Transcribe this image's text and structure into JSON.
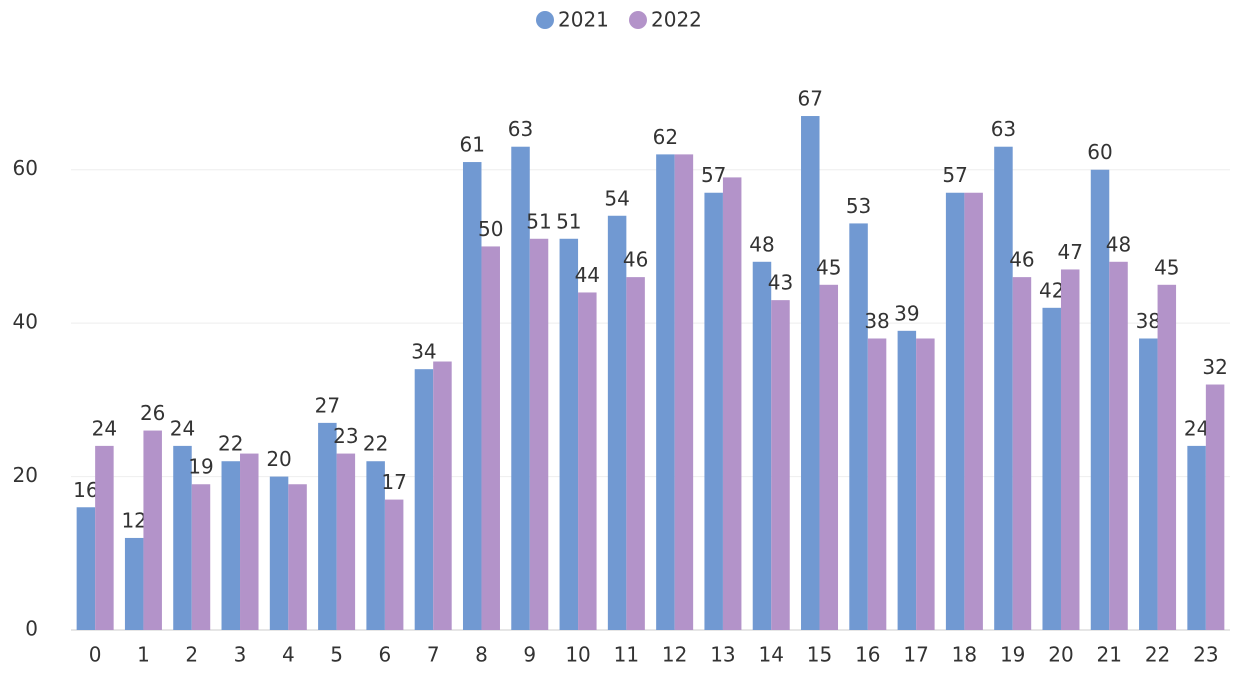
{
  "chart_data": {
    "type": "bar",
    "categories": [
      "0",
      "1",
      "2",
      "3",
      "4",
      "5",
      "6",
      "7",
      "8",
      "9",
      "10",
      "11",
      "12",
      "13",
      "14",
      "15",
      "16",
      "17",
      "18",
      "19",
      "20",
      "21",
      "22",
      "23"
    ],
    "series": [
      {
        "name": "2021",
        "color": "#7199d2",
        "values": [
          16,
          12,
          24,
          22,
          20,
          27,
          22,
          34,
          61,
          63,
          51,
          54,
          62,
          57,
          48,
          67,
          53,
          39,
          57,
          63,
          42,
          60,
          38,
          24
        ],
        "value_labels": [
          "16",
          "12",
          "24",
          "22",
          "20",
          "27",
          "22",
          "34",
          "61",
          "63",
          "51",
          "54",
          "62",
          "57",
          "48",
          "67",
          "53",
          "39",
          "57",
          "63",
          "42",
          "60",
          "38",
          "24"
        ]
      },
      {
        "name": "2022",
        "color": "#b393c9",
        "values": [
          24,
          26,
          19,
          23,
          19,
          23,
          17,
          35,
          50,
          51,
          44,
          46,
          62,
          59,
          43,
          45,
          38,
          38,
          57,
          46,
          47,
          48,
          45,
          32
        ],
        "value_labels": [
          "24",
          "26",
          "19",
          null,
          null,
          "23",
          "17",
          null,
          "50",
          "51",
          "44",
          "46",
          null,
          null,
          "43",
          "45",
          "38",
          null,
          null,
          "46",
          "47",
          "48",
          "45",
          "32"
        ]
      }
    ],
    "ylim": [
      0,
      73
    ],
    "yticks": [
      0,
      20,
      40,
      60
    ],
    "grid": true,
    "legend": "top"
  }
}
